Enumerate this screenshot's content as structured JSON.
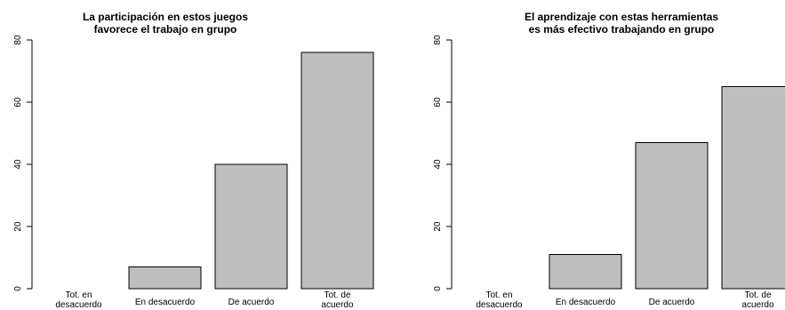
{
  "chart_data": [
    {
      "type": "bar",
      "title_lines": [
        "La participación en estos juegos",
        "favorece el trabajo en grupo"
      ],
      "categories": [
        [
          "Tot. en",
          "desacuerdo"
        ],
        [
          "En desacuerdo"
        ],
        [
          "De acuerdo"
        ],
        [
          "Tot. de",
          "acuerdo"
        ]
      ],
      "values": [
        0,
        7,
        40,
        76
      ],
      "ylim": [
        0,
        80
      ],
      "yticks": [
        "0",
        "20",
        "40",
        "60",
        "80"
      ],
      "bar_color": "#bebebe",
      "grid": false
    },
    {
      "type": "bar",
      "title_lines": [
        "El aprendizaje con estas herramientas",
        "es más efectivo trabajando en grupo"
      ],
      "categories": [
        [
          "Tot. en",
          "desacuerdo"
        ],
        [
          "En desacuerdo"
        ],
        [
          "De acuerdo"
        ],
        [
          "Tot. de",
          "acuerdo"
        ]
      ],
      "values": [
        0,
        11,
        47,
        65
      ],
      "ylim": [
        0,
        80
      ],
      "yticks": [
        "0",
        "20",
        "40",
        "60",
        "80"
      ],
      "bar_color": "#bebebe",
      "grid": false
    }
  ]
}
